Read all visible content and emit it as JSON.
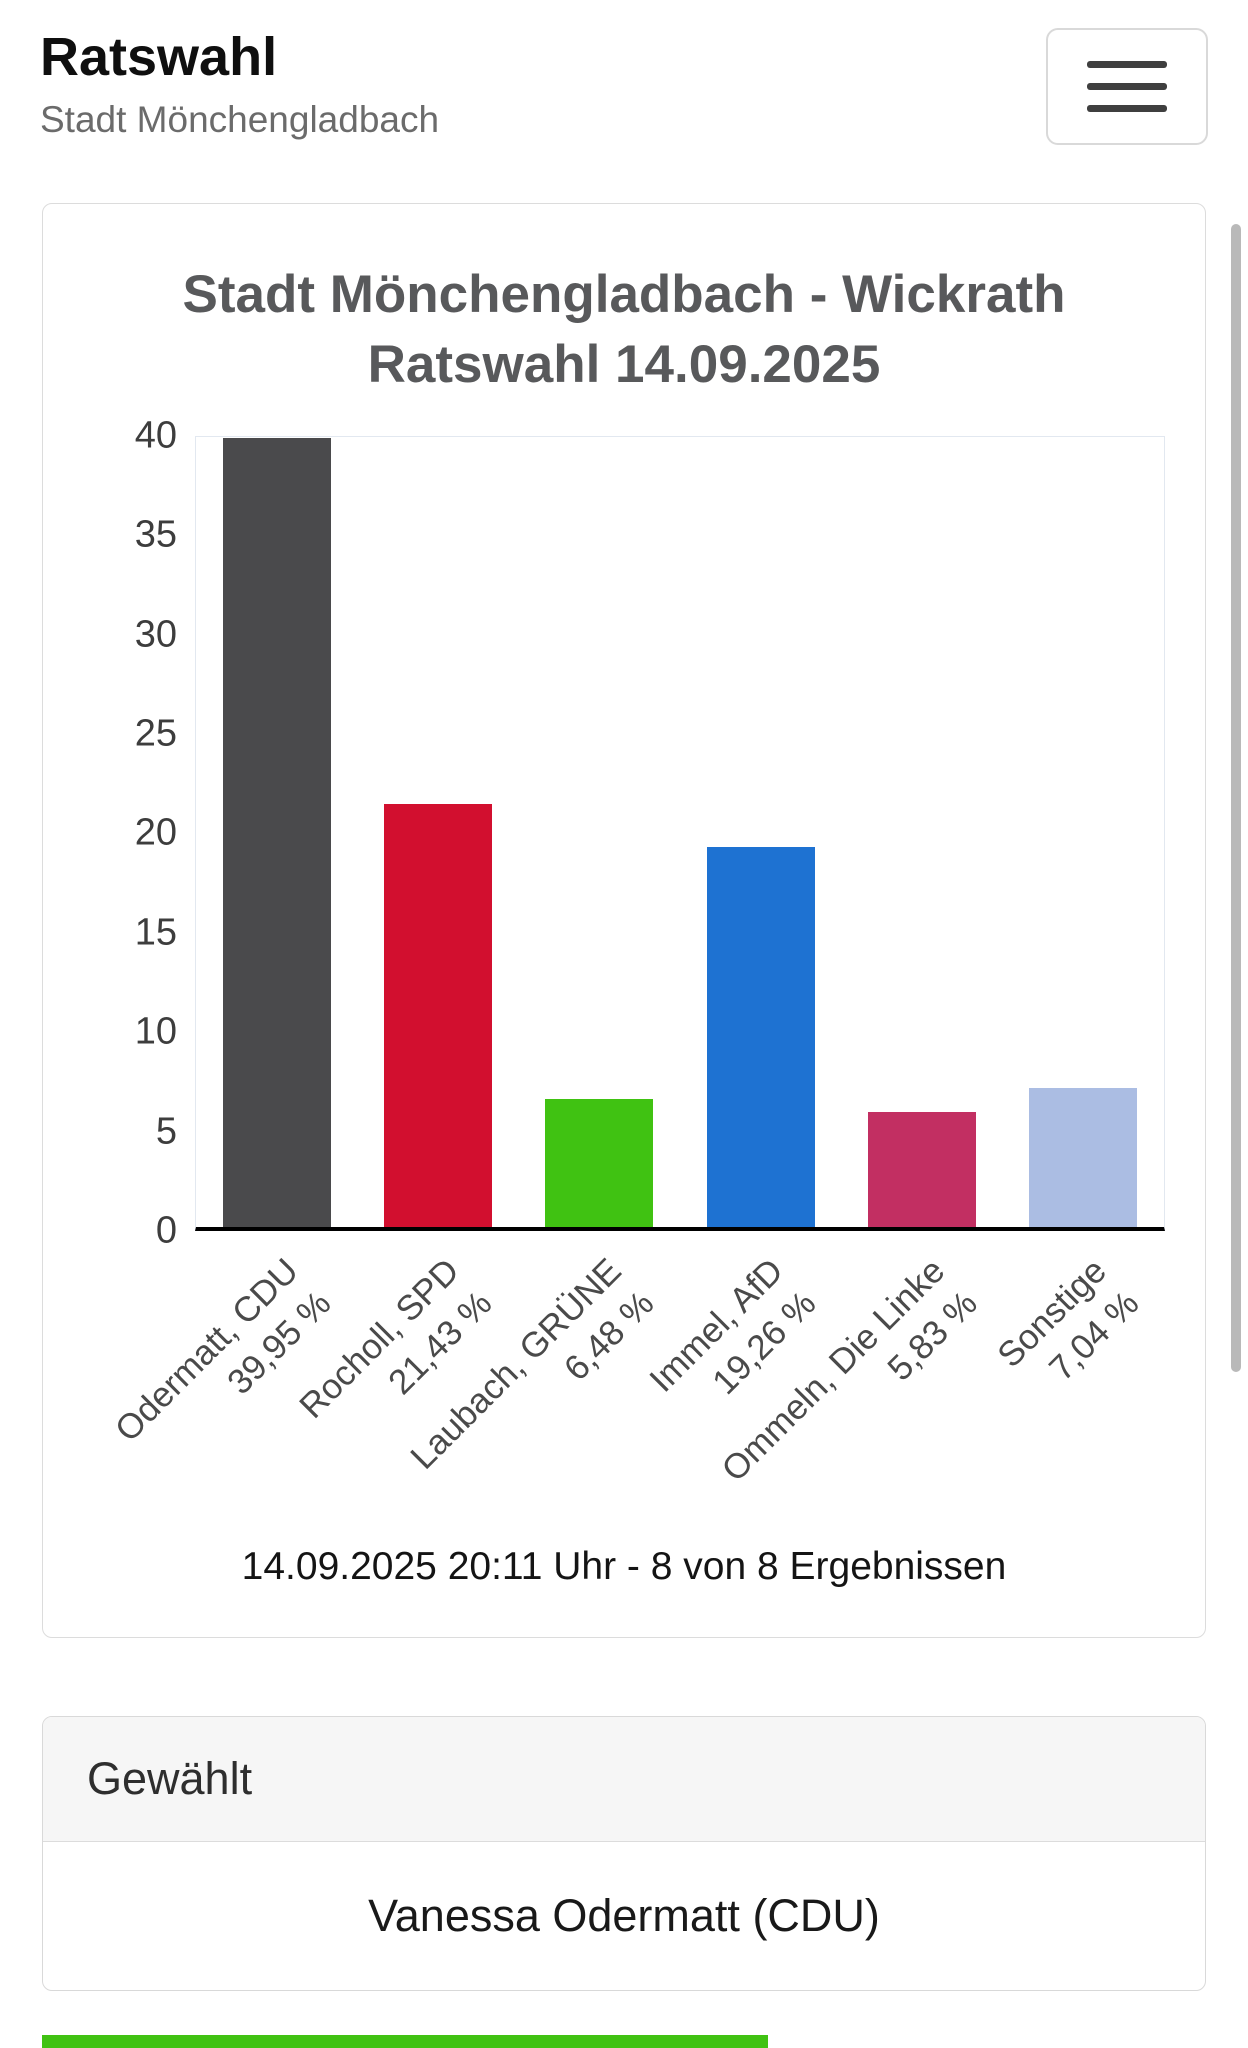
{
  "header": {
    "title": "Ratswahl",
    "subtitle": "Stadt Mönchengladbach",
    "menu_icon": "hamburger-icon"
  },
  "chart_data": {
    "type": "bar",
    "title": "Stadt Mönchengladbach - Wickrath Ratswahl 14.09.2025",
    "title_lines": [
      "Stadt Mönchengladbach - Wickrath",
      "Ratswahl 14.09.2025"
    ],
    "categories": [
      "Odermatt, CDU",
      "Rocholl, SPD",
      "Laubach, GRÜNE",
      "Immel, AfD",
      "Ommeln, Die Linke",
      "Sonstige"
    ],
    "value_labels": [
      "39,95 %",
      "21,43 %",
      "6,48 %",
      "19,26 %",
      "5,83 %",
      "7,04 %"
    ],
    "values": [
      39.95,
      21.43,
      6.48,
      19.26,
      5.83,
      7.04
    ],
    "colors": [
      "#4a4a4c",
      "#d20f2f",
      "#40c212",
      "#1e72d2",
      "#c22f62",
      "#abbde3"
    ],
    "ylim": [
      0,
      40
    ],
    "yticks": [
      0,
      5,
      10,
      15,
      20,
      25,
      30,
      35,
      40
    ],
    "xlabel": "",
    "ylabel": "",
    "grid": false,
    "legend": "none",
    "caption": "14.09.2025 20:11 Uhr - 8 von 8 Ergebnissen"
  },
  "elected": {
    "header": "Gewählt",
    "name": "Vanessa Odermatt (CDU)"
  },
  "colors": {
    "accent_green": "#40c212",
    "scrollbar": "#b9b9b9"
  }
}
